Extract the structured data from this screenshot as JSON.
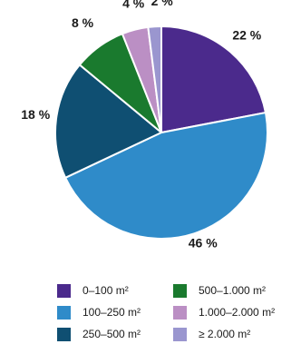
{
  "chart_data": {
    "type": "pie",
    "title": "",
    "categories": [
      "0–100 m²",
      "100–250 m²",
      "250–500 m²",
      "500–1.000 m²",
      "1.000–2.000 m²",
      "≥ 2.000 m²"
    ],
    "values": [
      22,
      46,
      18,
      8,
      4,
      2
    ],
    "value_labels": [
      "22 %",
      "46 %",
      "18 %",
      "8 %",
      "4 %",
      "2 %"
    ],
    "colors": [
      "#4b2a8c",
      "#2f8bc9",
      "#0f4f72",
      "#1a7a2e",
      "#bb8fc4",
      "#9a96cf"
    ],
    "legend_position": "bottom"
  }
}
